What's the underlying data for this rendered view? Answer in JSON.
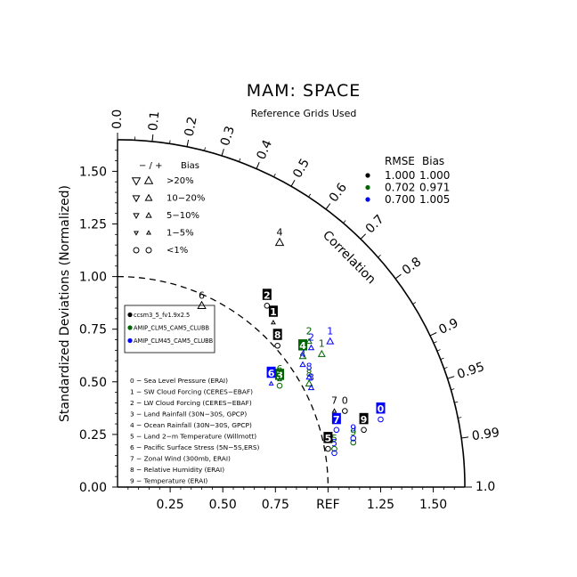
{
  "chart_data": {
    "type": "taylor",
    "title": "MAM: SPACE",
    "subtitle": "Reference Grids Used",
    "ylabel": "Standardized Deviations (Normalized)",
    "arc_label": "Correlation",
    "ref_label": "REF",
    "std_range": [
      0,
      1.65
    ],
    "std_ticks": [
      "0.00",
      "0.25",
      "0.50",
      "0.75",
      "1.00",
      "1.25",
      "1.50"
    ],
    "x_ticks": [
      "0.25",
      "0.50",
      "0.75",
      "1.25",
      "1.50"
    ],
    "corr_ticks": [
      "0.0",
      "0.1",
      "0.2",
      "0.3",
      "0.4",
      "0.5",
      "0.6",
      "0.7",
      "0.8",
      "0.9",
      "0.95",
      "0.99",
      "1.0"
    ],
    "bias_legend": {
      "header_sign": "− / +",
      "header_bias": "Bias",
      "rows": [
        {
          "label": ">20%",
          "size": 4.6
        },
        {
          "label": "10−20%",
          "size": 3.8
        },
        {
          "label": "5−10%",
          "size": 3.0
        },
        {
          "label": "1−5%",
          "size": 2.2
        },
        {
          "label": "<1%",
          "size": 0
        }
      ]
    },
    "stats_legend": {
      "header_rmse": "RMSE",
      "header_bias": "Bias",
      "rows": [
        {
          "rmse": "1.000",
          "bias": "1.000",
          "color": "#000000"
        },
        {
          "rmse": "0.702",
          "bias": "0.971",
          "color": "#006400"
        },
        {
          "rmse": "0.700",
          "bias": "1.005",
          "color": "#0000ff"
        }
      ]
    },
    "series": [
      {
        "name": "ccsm3_5_fv1.9x2.5",
        "color": "#000000"
      },
      {
        "name": "AMIP_CLM5_CAM5_CLUBB",
        "color": "#006400"
      },
      {
        "name": "AMIP_CLM45_CAM5_CLUBB",
        "color": "#0000ff"
      }
    ],
    "variables": [
      "0 − Sea Level Pressure (ERAI)",
      "1 − SW Cloud Forcing (CERES−EBAF)",
      "2 − LW Cloud Forcing (CERES−EBAF)",
      "3 − Land Rainfall (30N−30S, GPCP)",
      "4 − Ocean Rainfall (30N−30S, GPCP)",
      "5 − Land 2−m Temperature (Willmott)",
      "6 − Pacific Surface Stress (5N−5S,ERS)",
      "7 − Zonal Wind (300mb, ERAI)",
      "8 − Relative Humidity (ERAI)",
      "9 − Temperature (ERAI)"
    ],
    "points": [
      {
        "series": 0,
        "label": "0",
        "x": 1.08,
        "y": 0.37,
        "marker": "circle",
        "boxed": false
      },
      {
        "series": 0,
        "label": "1",
        "x": 0.74,
        "y": 0.79,
        "marker": "up",
        "size": 2.2,
        "boxed": true
      },
      {
        "series": 0,
        "label": "2",
        "x": 0.71,
        "y": 0.87,
        "marker": "circle",
        "boxed": true
      },
      {
        "series": 0,
        "label": "4",
        "x": 0.77,
        "y": 1.17,
        "marker": "up",
        "size": 4.6,
        "boxed": false
      },
      {
        "series": 0,
        "label": "5",
        "x": 1.0,
        "y": 0.19,
        "marker": "circle",
        "boxed": true
      },
      {
        "series": 0,
        "label": "6",
        "x": 0.4,
        "y": 0.87,
        "marker": "up",
        "size": 4.6,
        "boxed": false
      },
      {
        "series": 0,
        "label": "7",
        "x": 1.03,
        "y": 0.37,
        "marker": "up",
        "size": 2.2,
        "boxed": false
      },
      {
        "series": 0,
        "label": "8",
        "x": 0.76,
        "y": 0.68,
        "marker": "circle",
        "boxed": true
      },
      {
        "series": 0,
        "label": "9",
        "x": 1.17,
        "y": 0.28,
        "marker": "circle",
        "boxed": true
      },
      {
        "series": 1,
        "label": "1",
        "x": 0.97,
        "y": 0.64,
        "marker": "up",
        "size": 3.8,
        "boxed": false
      },
      {
        "series": 1,
        "label": "2",
        "x": 0.91,
        "y": 0.7,
        "marker": "up",
        "size": 3.0,
        "boxed": false
      },
      {
        "series": 1,
        "label": "3",
        "x": 0.77,
        "y": 0.49,
        "marker": "circle",
        "boxed": true
      },
      {
        "series": 1,
        "label": "4",
        "x": 0.88,
        "y": 0.63,
        "marker": "up",
        "size": 3.8,
        "boxed": true
      },
      {
        "series": 1,
        "label": "5",
        "x": 1.03,
        "y": 0.19,
        "marker": "circle",
        "boxed": false
      },
      {
        "series": 1,
        "label": "6",
        "x": 0.77,
        "y": 0.52,
        "marker": "up",
        "size": 2.2,
        "boxed": false
      },
      {
        "series": 1,
        "label": "8",
        "x": 0.91,
        "y": 0.5,
        "marker": "up",
        "size": 3.8,
        "boxed": false
      },
      {
        "series": 1,
        "label": "9",
        "x": 1.12,
        "y": 0.22,
        "marker": "circle",
        "boxed": false
      },
      {
        "series": 2,
        "label": "0",
        "x": 1.25,
        "y": 0.33,
        "marker": "circle",
        "boxed": true
      },
      {
        "series": 2,
        "label": "1",
        "x": 1.01,
        "y": 0.7,
        "marker": "up",
        "size": 3.8,
        "boxed": false
      },
      {
        "series": 2,
        "label": "2",
        "x": 0.92,
        "y": 0.67,
        "marker": "up",
        "size": 3.0,
        "boxed": false
      },
      {
        "series": 2,
        "label": "3",
        "x": 0.92,
        "y": 0.48,
        "marker": "up",
        "size": 3.0,
        "boxed": false
      },
      {
        "series": 2,
        "label": "4",
        "x": 0.88,
        "y": 0.59,
        "marker": "up",
        "size": 3.0,
        "boxed": false
      },
      {
        "series": 2,
        "label": "5",
        "x": 1.03,
        "y": 0.17,
        "marker": "circle",
        "boxed": false
      },
      {
        "series": 2,
        "label": "6",
        "x": 0.73,
        "y": 0.5,
        "marker": "up",
        "size": 2.2,
        "boxed": true
      },
      {
        "series": 2,
        "label": "7",
        "x": 1.04,
        "y": 0.28,
        "marker": "circle",
        "boxed": true
      },
      {
        "series": 2,
        "label": "8",
        "x": 0.91,
        "y": 0.53,
        "marker": "up",
        "size": 3.0,
        "boxed": false
      },
      {
        "series": 2,
        "label": "9",
        "x": 1.12,
        "y": 0.24,
        "marker": "circle",
        "boxed": false
      }
    ]
  }
}
